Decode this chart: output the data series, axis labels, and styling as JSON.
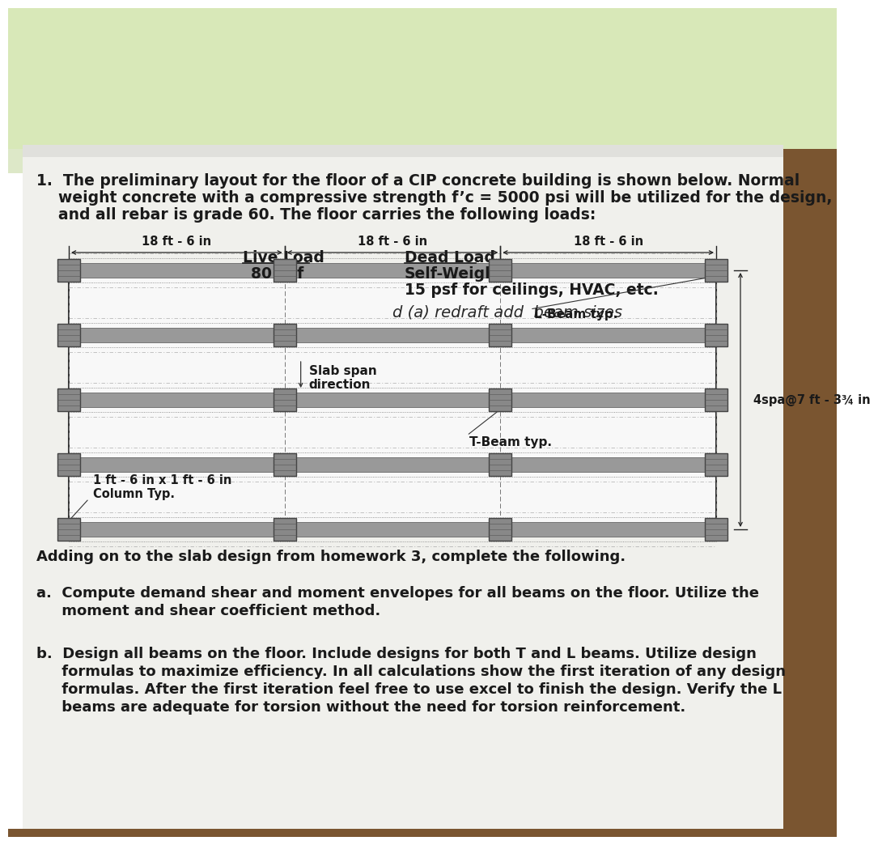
{
  "bg_top_color": "#e8e8d0",
  "bg_bottom_color": "#8b6914",
  "paper_color": "#efefeb",
  "dim_label": "18 ft - 6 in",
  "col_label_line1": "1 ft - 6 in x 1 ft - 6 in",
  "col_label_line2": "Column Typ.",
  "lbeam_label": "L-Beam typ.",
  "tbeam_label": "T-Beam typ.",
  "slab_span_label_line1": "Slab span",
  "slab_span_label_line2": "direction",
  "spa_label": "4spa@7 ft - 3¾ in",
  "adding_text": "Adding on to the slab design from homework 3, complete the following.",
  "item_a_1": "a.  Compute demand shear and moment envelopes for all beams on the floor. Utilize the",
  "item_a_2": "     moment and shear coefficient method.",
  "item_b_1": "b.  Design all beams on the floor. Include designs for both T and L beams. Utilize design",
  "item_b_2": "     formulas to maximize efficiency. In all calculations show the first iteration of any design",
  "item_b_3": "     formulas. After the first iteration feel free to use excel to finish the design. Verify the L",
  "item_b_4": "     beams are adequate for torsion without the need for torsion reinforcement.",
  "text_color": "#1a1a1a",
  "beam_fill": "#999999",
  "col_fill": "#888888",
  "line_color": "#444444"
}
